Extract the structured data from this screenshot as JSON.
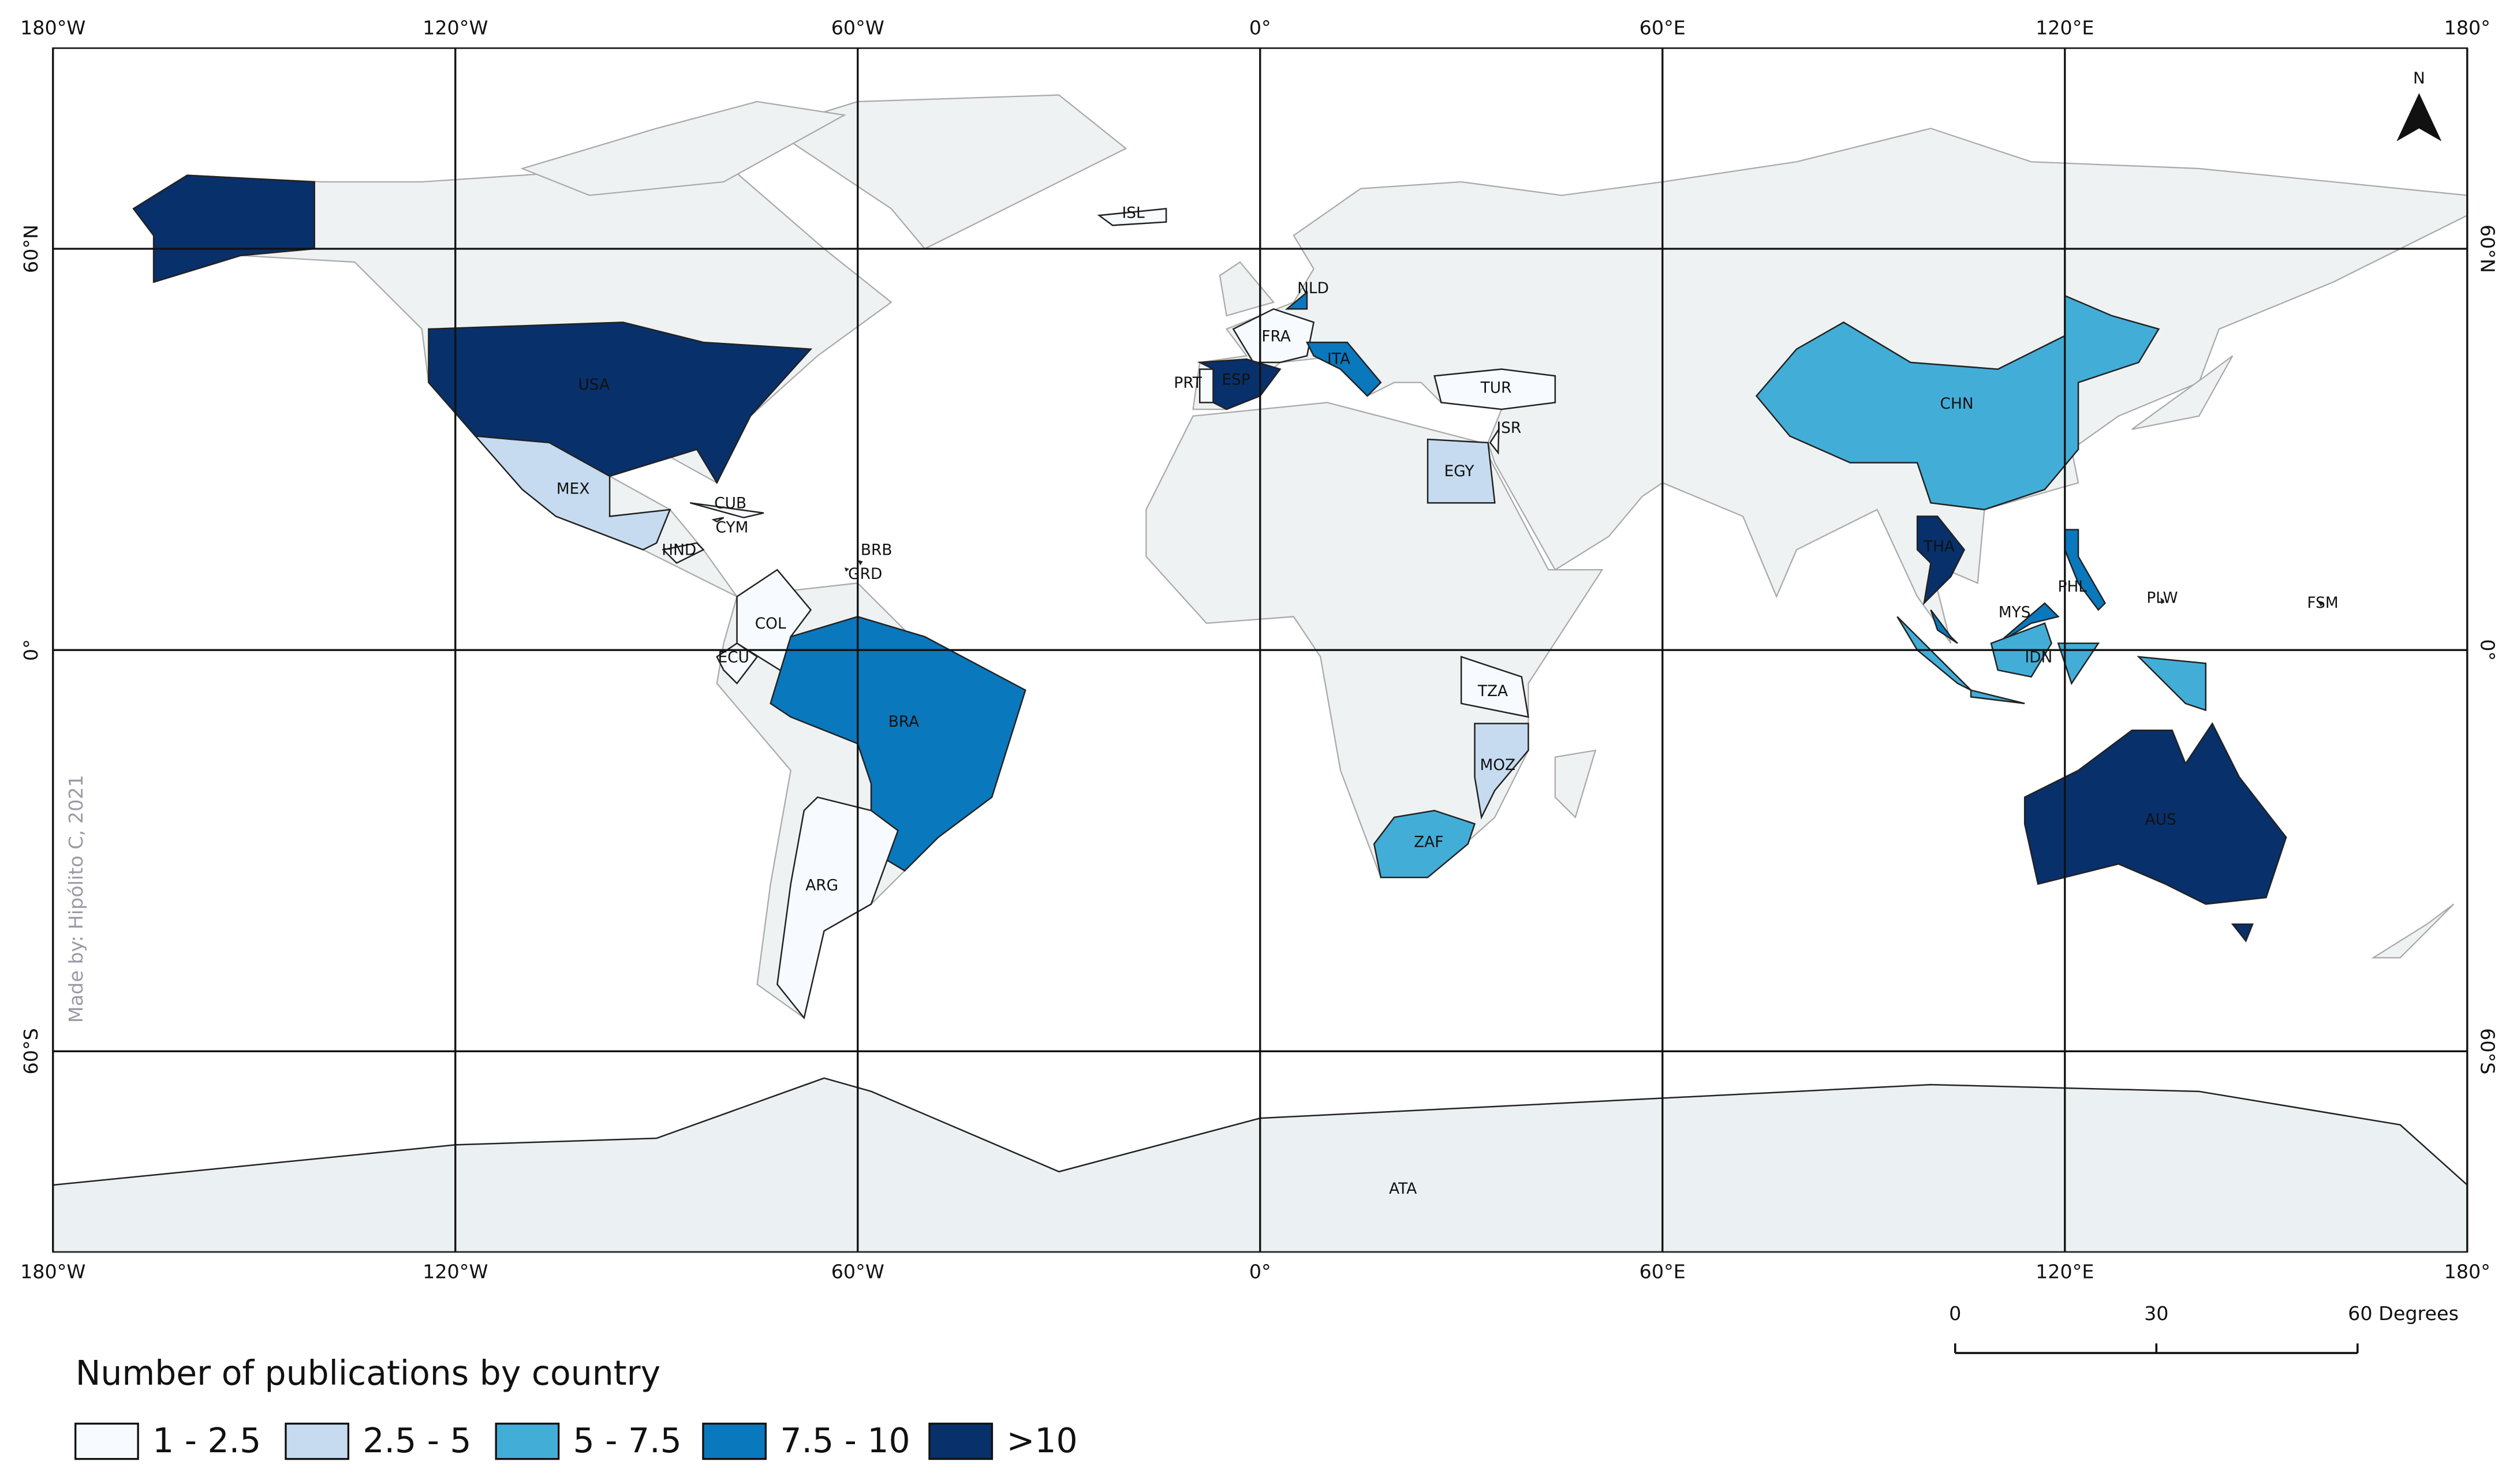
{
  "map": {
    "xlim": [
      -180,
      180
    ],
    "ylim": [
      -90,
      90
    ],
    "xticks": [
      {
        "value": -180,
        "label": "180°W"
      },
      {
        "value": -120,
        "label": "120°W"
      },
      {
        "value": -60,
        "label": "60°W"
      },
      {
        "value": 0,
        "label": "0°"
      },
      {
        "value": 60,
        "label": "60°E"
      },
      {
        "value": 120,
        "label": "120°E"
      },
      {
        "value": 180,
        "label": "180°"
      }
    ],
    "yticks": [
      {
        "value": 60,
        "label": "60°N"
      },
      {
        "value": 0,
        "label": "0°"
      },
      {
        "value": -60,
        "label": "60°S"
      }
    ],
    "north_label": "N",
    "credit": "Made by: Hipólito C, 2021",
    "scale_bar": {
      "ticks": [
        0,
        30,
        {
          "value": 60,
          "label": "60 Degrees"
        }
      ]
    },
    "countries": [
      {
        "label": "USA",
        "color": "#08306b"
      },
      {
        "label": "MEX",
        "color": "#c6dbef"
      },
      {
        "label": "CUB",
        "color": "#f7fbff"
      },
      {
        "label": "CYM",
        "color": "#f7fbff"
      },
      {
        "label": "HND",
        "color": "#f7fbff"
      },
      {
        "label": "BRB",
        "color": "#f7fbff"
      },
      {
        "label": "GRD",
        "color": "#f7fbff"
      },
      {
        "label": "COL",
        "color": "#f7fbff"
      },
      {
        "label": "ECU",
        "color": "#f7fbff"
      },
      {
        "label": "BRA",
        "color": "#0a78bd"
      },
      {
        "label": "ARG",
        "color": "#f7fbff"
      },
      {
        "label": "ISL",
        "color": "#f7fbff"
      },
      {
        "label": "NLD",
        "color": "#0a78bd"
      },
      {
        "label": "FRA",
        "color": "#f7fbff"
      },
      {
        "label": "PRT",
        "color": "#f7fbff"
      },
      {
        "label": "ESP",
        "color": "#08306b"
      },
      {
        "label": "ITA",
        "color": "#0a78bd"
      },
      {
        "label": "TUR",
        "color": "#f7fbff"
      },
      {
        "label": "ISR",
        "color": "#f7fbff"
      },
      {
        "label": "EGY",
        "color": "#c6dbef"
      },
      {
        "label": "TZA",
        "color": "#f7fbff"
      },
      {
        "label": "MOZ",
        "color": "#c6dbef"
      },
      {
        "label": "ZAF",
        "color": "#42aed8"
      },
      {
        "label": "CHN",
        "color": "#42aed8"
      },
      {
        "label": "THA",
        "color": "#08306b"
      },
      {
        "label": "MYS",
        "color": "#0a78bd"
      },
      {
        "label": "IDN",
        "color": "#42aed8"
      },
      {
        "label": "PHL",
        "color": "#0a78bd"
      },
      {
        "label": "PLW",
        "color": "#f7fbff"
      },
      {
        "label": "FSM",
        "color": "#f7fbff"
      },
      {
        "label": "AUS",
        "color": "#08306b"
      },
      {
        "label": "ATA",
        "color": "#ebf1f3"
      }
    ]
  },
  "legend": {
    "title": "Number of publications by country",
    "items": [
      {
        "label": "1 - 2.5",
        "color": "#f7fbff"
      },
      {
        "label": "2.5 - 5",
        "color": "#c6dbef"
      },
      {
        "label": "5 - 7.5",
        "color": "#42aed8"
      },
      {
        "label": "7.5 - 10",
        "color": "#0a78bd"
      },
      {
        "label": ">10",
        "color": "#08306b"
      }
    ]
  }
}
